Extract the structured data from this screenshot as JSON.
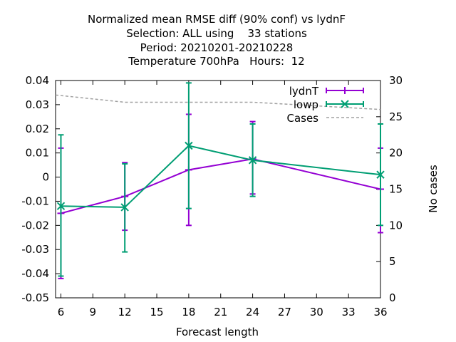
{
  "chart_data": {
    "type": "line",
    "title_lines": [
      "Normalized mean RMSE diff (90% conf) vs lydnF",
      "Selection: ALL using    33 stations",
      "Period: 20210201-20210228",
      "Temperature 700hPa   Hours:  12"
    ],
    "xlabel": "Forecast length",
    "ylabel_right": "No cases",
    "xlim": [
      5.5,
      36
    ],
    "ylim": [
      -0.05,
      0.04
    ],
    "y2lim": [
      0,
      30
    ],
    "xticks": [
      6,
      9,
      12,
      15,
      18,
      21,
      24,
      27,
      30,
      33,
      36
    ],
    "yticks": [
      -0.05,
      -0.04,
      -0.03,
      -0.02,
      -0.01,
      0,
      0.01,
      0.02,
      0.03,
      0.04
    ],
    "y2ticks": [
      0,
      5,
      10,
      15,
      20,
      25,
      30
    ],
    "ytick_labels": [
      "-0.05",
      "-0.04",
      "-0.03",
      "-0.02",
      "-0.01",
      "0",
      "0.01",
      "0.02",
      "0.03",
      "0.04"
    ],
    "y2tick_labels": [
      "0",
      "5",
      "10",
      "15",
      "20",
      "25",
      "30"
    ],
    "legend_position": "top-right",
    "series": [
      {
        "name": "lydnT",
        "color": "#9400d3",
        "marker": "plus",
        "x": [
          6,
          12,
          18,
          24,
          36
        ],
        "y": [
          -0.015,
          -0.008,
          0.003,
          0.0075,
          -0.005
        ],
        "err_low": [
          -0.042,
          -0.022,
          -0.02,
          -0.007,
          -0.023
        ],
        "err_high": [
          0.012,
          0.006,
          0.026,
          0.023,
          0.012
        ]
      },
      {
        "name": "lowp",
        "color": "#009e73",
        "marker": "cross",
        "x": [
          6,
          12,
          18,
          24,
          36
        ],
        "y": [
          -0.012,
          -0.0125,
          0.013,
          0.007,
          0.001
        ],
        "err_low": [
          -0.041,
          -0.031,
          -0.013,
          -0.008,
          -0.02
        ],
        "err_high": [
          0.0175,
          0.0055,
          0.039,
          0.022,
          0.022
        ]
      },
      {
        "name": "Cases",
        "color": "#a0a0a0",
        "axis": "right",
        "dashed": true,
        "x": [
          5.5,
          12,
          24,
          36
        ],
        "y": [
          28,
          27,
          27,
          26
        ]
      }
    ]
  }
}
